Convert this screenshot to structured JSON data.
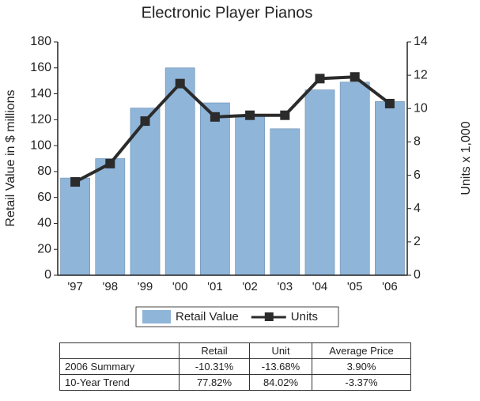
{
  "chart_data": {
    "type": "bar-line",
    "title": "Electronic Player Pianos",
    "y_label": "Retail Value in $ millions",
    "y2_label": "Units x 1,000",
    "categories": [
      "'97",
      "'98",
      "'99",
      "'00",
      "'01",
      "'02",
      "'03",
      "'04",
      "'05",
      "'06"
    ],
    "series": [
      {
        "name": "Retail Value",
        "type": "bar",
        "color": "#8fb5d9",
        "values": [
          75,
          90,
          129,
          160,
          133,
          124,
          113,
          143,
          149,
          134
        ]
      },
      {
        "name": "Units",
        "type": "line",
        "axis": "y2",
        "color": "#2b2b2b",
        "values": [
          5.6,
          6.7,
          9.25,
          11.5,
          9.5,
          9.6,
          9.6,
          11.8,
          11.9,
          10.3
        ]
      }
    ],
    "ylim": [
      0,
      180
    ],
    "yticks": [
      0,
      20,
      40,
      60,
      80,
      100,
      120,
      140,
      160,
      180
    ],
    "y2lim": [
      0,
      14
    ],
    "y2ticks": [
      0,
      2,
      4,
      6,
      8,
      10,
      12,
      14
    ],
    "legend": "bottom"
  },
  "table": {
    "columns": [
      "Retail",
      "Unit",
      "Average Price"
    ],
    "rows": [
      [
        "2006 Summary",
        "-10.31%",
        "-13.68%",
        "3.90%"
      ],
      [
        "10-Year Trend",
        "77.82%",
        "84.02%",
        "-3.37%"
      ]
    ]
  }
}
